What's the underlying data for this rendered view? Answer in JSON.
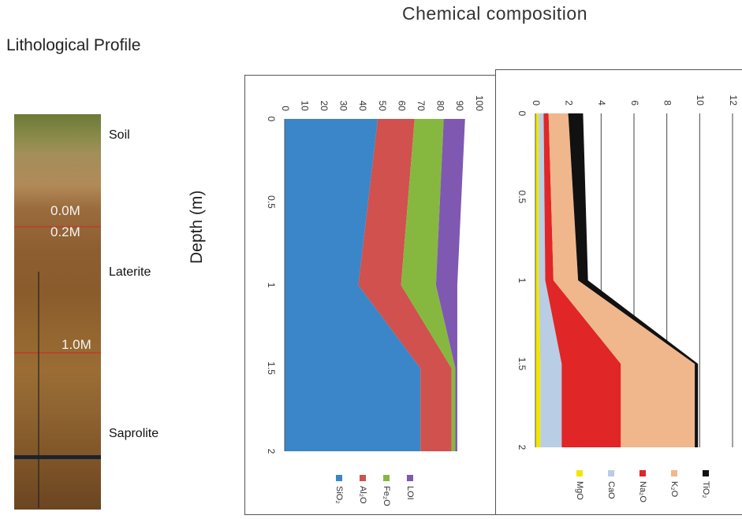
{
  "header": {
    "title": "Chemical  composition",
    "lithology_title": "Lithological Profile",
    "depth_axis_label": "Depth (m)"
  },
  "profile": {
    "photo_labels": [
      "0.0M",
      "0.2M",
      "1.0M"
    ],
    "zones": [
      "Soil",
      "Laterite",
      "Saprolite"
    ]
  },
  "colors": {
    "SiO2": "#3a86c8",
    "Al2O3": "#d0514d",
    "Fe2O3": "#86b840",
    "LOI": "#7f58b2",
    "MgO": "#f2e600",
    "CaO": "#b9cde4",
    "Na2O": "#e02626",
    "K2O": "#f0b78c",
    "TiO2": "#111111"
  },
  "chart_data": [
    {
      "type": "area",
      "stacked": true,
      "orientation": "rotated",
      "x": [
        0,
        1,
        1.5,
        2
      ],
      "xlabel": "Depth (m)",
      "x_ticks": [
        "0",
        "0.5",
        "1",
        "1.5",
        "2"
      ],
      "ylim": [
        0,
        100
      ],
      "y_ticks": [
        "0",
        "10",
        "20",
        "30",
        "40",
        "50",
        "60",
        "70",
        "80",
        "90",
        "100"
      ],
      "series": [
        {
          "name": "SiO2",
          "legend": "SiO₂",
          "values": [
            48,
            38,
            70,
            70
          ]
        },
        {
          "name": "Al2O3",
          "legend": "Al₂O",
          "values": [
            19,
            22,
            16,
            16
          ]
        },
        {
          "name": "Fe2O3",
          "legend": "Fe₂O",
          "values": [
            15,
            18,
            2,
            2
          ]
        },
        {
          "name": "LOI",
          "legend": "LOI",
          "values": [
            11,
            11,
            1,
            1
          ]
        }
      ],
      "legend_position": "bottom"
    },
    {
      "type": "area",
      "stacked": true,
      "orientation": "rotated",
      "x": [
        0,
        1,
        1.5,
        2
      ],
      "xlabel": "Depth (m)",
      "x_ticks": [
        "0",
        "0.5",
        "1",
        "1.5",
        "2"
      ],
      "ylim": [
        0,
        12
      ],
      "y_ticks": [
        "0",
        "2",
        "4",
        "6",
        "8",
        "10",
        "12"
      ],
      "series": [
        {
          "name": "MgO",
          "legend": "MgO",
          "values": [
            0.2,
            0.2,
            0.3,
            0.3
          ]
        },
        {
          "name": "CaO",
          "legend": "CaO",
          "values": [
            0.3,
            0.4,
            1.3,
            1.3
          ]
        },
        {
          "name": "Na2O",
          "legend": "Na₂O",
          "values": [
            0.3,
            0.5,
            3.6,
            3.6
          ]
        },
        {
          "name": "K2O",
          "legend": "K₂O",
          "values": [
            1.2,
            1.5,
            4.5,
            4.5
          ]
        },
        {
          "name": "TiO2",
          "legend": "TiO₂",
          "values": [
            0.9,
            0.6,
            0.2,
            0.2
          ]
        }
      ],
      "legend_position": "bottom"
    }
  ]
}
